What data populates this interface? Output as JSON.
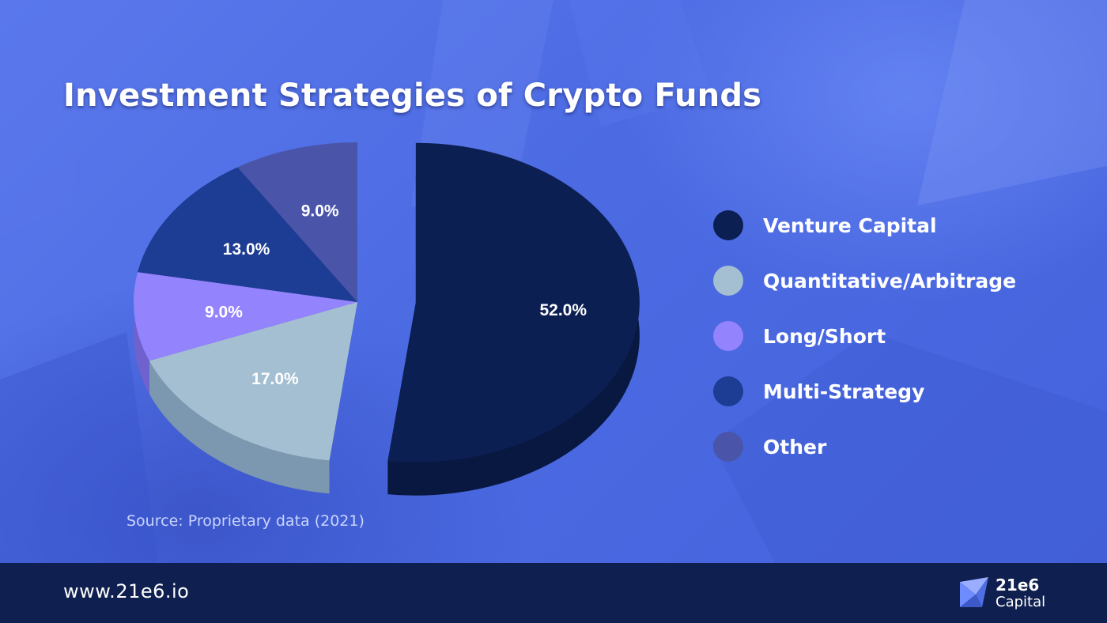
{
  "title": "Investment Strategies of Crypto Funds",
  "source_note": "Source: Proprietary data (2021)",
  "footer": {
    "url": "www.21e6.io",
    "brand_name": "21e6",
    "brand_sub": "Capital"
  },
  "colors": {
    "background": "#4f6ee6",
    "footer": "#0f1f4f"
  },
  "chart_data": {
    "type": "pie",
    "title": "Investment Strategies of Crypto Funds",
    "legend_position": "right",
    "slices": [
      {
        "label": "Venture Capital",
        "value": 52.0,
        "display": "52.0%",
        "color": "#0c1f52",
        "side": "#091840",
        "exploded": true
      },
      {
        "label": "Quantitative/Arbitrage",
        "value": 17.0,
        "display": "17.0%",
        "color": "#a4bfd2",
        "side": "#7c97b0",
        "exploded": false
      },
      {
        "label": "Long/Short",
        "value": 9.0,
        "display": "9.0%",
        "color": "#9383fc",
        "side": "#6f62cf",
        "exploded": false
      },
      {
        "label": "Multi-Strategy",
        "value": 13.0,
        "display": "13.0%",
        "color": "#1d3c93",
        "side": "#152d70",
        "exploded": false
      },
      {
        "label": "Other",
        "value": 9.0,
        "display": "9.0%",
        "color": "#4a55aa",
        "side": "#363f84",
        "exploded": false
      }
    ]
  }
}
